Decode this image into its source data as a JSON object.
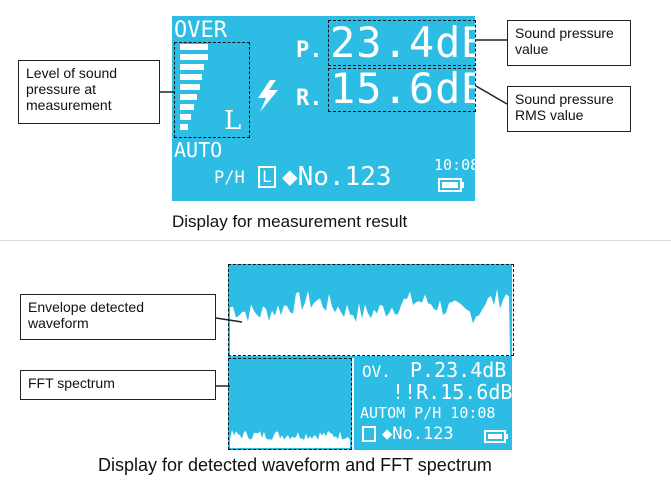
{
  "display1": {
    "over": "OVER",
    "p_prefix": "P.",
    "p_value": "23.4dB",
    "r_prefix": "R.",
    "r_value": "15.6dB",
    "l_mark": "L",
    "auto": "AUTO",
    "bottom_ph": "P/H",
    "bottom_l": "L",
    "bottom_no": "◆No.123",
    "bottom_time": "10:08",
    "caption": "Display for measurement result"
  },
  "display1_callouts": {
    "level": "Level of sound pressure at measurement",
    "pressure": "Sound pressure value",
    "rms": "Sound pressure RMS value"
  },
  "display2": {
    "ov": "OV.",
    "p_line": "P.23.4dB",
    "r_line": "!!R.15.6dB",
    "auto_line": "AUTOM P/H 10:08",
    "no_line": "◆No.123",
    "caption": "Display for detected waveform and  FFT spectrum"
  },
  "display2_callouts": {
    "envelope": "Envelope detected waveform",
    "fft": "FFT spectrum"
  },
  "colors": {
    "lcd": "#2cbce4",
    "text": "#ffffff",
    "callout_border": "#222222"
  },
  "icons": [
    "lightning-icon",
    "battery-icon",
    "level-bar-icon"
  ]
}
